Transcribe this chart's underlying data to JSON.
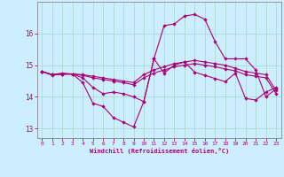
{
  "xlabel": "Windchill (Refroidissement éolien,°C)",
  "background_color": "#cceeff",
  "grid_color": "#aaddcc",
  "line_color": "#aa0077",
  "xlim": [
    -0.5,
    23.5
  ],
  "ylim": [
    12.7,
    17.0
  ],
  "yticks": [
    13,
    14,
    15,
    16
  ],
  "xticks": [
    0,
    1,
    2,
    3,
    4,
    5,
    6,
    7,
    8,
    9,
    10,
    11,
    12,
    13,
    14,
    15,
    16,
    17,
    18,
    19,
    20,
    21,
    22,
    23
  ],
  "lines": [
    {
      "x": [
        0,
        1,
        2,
        3,
        4,
        5,
        6,
        7,
        8,
        9,
        10,
        11,
        12,
        13,
        14,
        15,
        16,
        17,
        18,
        19,
        20,
        21,
        22,
        23
      ],
      "y": [
        14.8,
        14.7,
        14.75,
        14.72,
        14.7,
        14.65,
        14.6,
        14.55,
        14.5,
        14.45,
        14.7,
        14.85,
        14.95,
        15.05,
        15.1,
        15.15,
        15.1,
        15.05,
        15.0,
        14.9,
        14.8,
        14.75,
        14.7,
        14.2
      ]
    },
    {
      "x": [
        0,
        1,
        2,
        3,
        4,
        5,
        6,
        7,
        8,
        9,
        10,
        11,
        12,
        13,
        14,
        15,
        16,
        17,
        18,
        19,
        20,
        21,
        22,
        23
      ],
      "y": [
        14.8,
        14.7,
        14.72,
        14.72,
        14.68,
        14.6,
        14.55,
        14.5,
        14.45,
        14.38,
        14.6,
        14.75,
        14.85,
        14.95,
        15.0,
        15.05,
        15.0,
        14.95,
        14.88,
        14.82,
        14.7,
        14.65,
        14.6,
        14.1
      ]
    },
    {
      "x": [
        0,
        1,
        2,
        3,
        4,
        5,
        6,
        7,
        8,
        9,
        10,
        11,
        12,
        13,
        14,
        15,
        16,
        17,
        18,
        19,
        20,
        21,
        22,
        23
      ],
      "y": [
        14.8,
        14.7,
        14.72,
        14.72,
        14.6,
        14.3,
        14.1,
        14.15,
        14.1,
        14.0,
        13.85,
        15.2,
        16.25,
        16.3,
        16.55,
        16.6,
        16.45,
        15.75,
        15.2,
        15.2,
        15.2,
        14.85,
        14.0,
        14.25
      ]
    },
    {
      "x": [
        0,
        1,
        2,
        3,
        4,
        5,
        6,
        7,
        8,
        9,
        10,
        11,
        12,
        13,
        14,
        15,
        16,
        17,
        18,
        19,
        20,
        21,
        22,
        23
      ],
      "y": [
        14.8,
        14.68,
        14.72,
        14.72,
        14.45,
        13.8,
        13.7,
        13.35,
        13.2,
        13.05,
        13.85,
        15.2,
        14.75,
        15.0,
        15.1,
        14.78,
        14.68,
        14.58,
        14.48,
        14.75,
        13.95,
        13.9,
        14.15,
        14.3
      ]
    }
  ]
}
